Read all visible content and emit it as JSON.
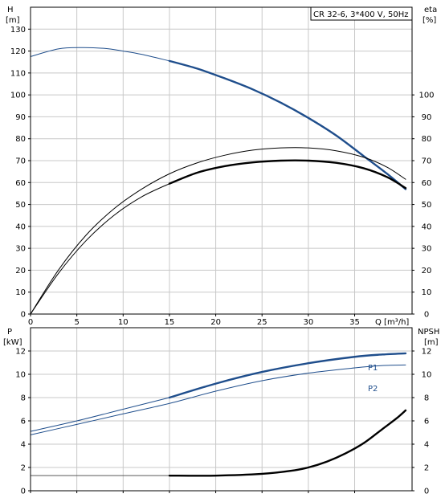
{
  "chart_data": [
    {
      "type": "line",
      "title": "CR 32-6, 3*400 V, 50Hz",
      "xlabel": "Q [m³/h]",
      "ylabel_left_name": "H",
      "ylabel_left_unit": "[m]",
      "ylabel_right_name": "eta",
      "ylabel_right_unit": "[%]",
      "xlim": [
        0,
        41.2
      ],
      "ylim_left": [
        0,
        140
      ],
      "ylim_right": [
        0,
        140
      ],
      "x_ticks": [
        0,
        5,
        10,
        15,
        20,
        25,
        30,
        35
      ],
      "y_ticks_left": [
        0,
        10,
        20,
        30,
        40,
        50,
        60,
        70,
        80,
        90,
        100,
        110,
        120,
        130
      ],
      "y_ticks_right": [
        0,
        10,
        20,
        30,
        40,
        50,
        60,
        70,
        80,
        90,
        100
      ],
      "grid": true,
      "series": [
        {
          "color": "#1f4e8c",
          "x": [
            0,
            3,
            5.5,
            8,
            10,
            12,
            15
          ],
          "y": [
            117.5,
            121,
            121.6,
            121.2,
            120,
            118.5,
            115.5
          ],
          "width": 1
        },
        {
          "color": "#1f4e8c",
          "x": [
            15,
            18,
            21,
            24,
            27,
            30,
            33,
            36,
            38.5,
            40.5
          ],
          "y": [
            115.5,
            112,
            107.5,
            102.5,
            96.5,
            89.5,
            81.5,
            72,
            64,
            57
          ],
          "width": 2.4
        },
        {
          "color": "#000000",
          "x": [
            0,
            3,
            6,
            9,
            12,
            15,
            18,
            21,
            24,
            27,
            30,
            33,
            36,
            38.5,
            40.5
          ],
          "y": [
            0,
            20,
            36,
            48,
            57,
            64,
            69,
            72.5,
            74.8,
            75.8,
            75.8,
            74.5,
            71.5,
            67,
            61.5
          ],
          "width": 1
        },
        {
          "color": "#000000",
          "x": [
            0,
            3,
            6,
            9,
            12,
            15
          ],
          "y": [
            0,
            18.5,
            33.5,
            45,
            53.5,
            59.5
          ],
          "width": 1
        },
        {
          "color": "#000000",
          "x": [
            15,
            18,
            21,
            24,
            27,
            30,
            33,
            36,
            38.5,
            40.5
          ],
          "y": [
            59.5,
            64.5,
            67.5,
            69.2,
            70,
            70,
            69,
            66.5,
            62.5,
            57.5
          ],
          "width": 2.4
        }
      ]
    },
    {
      "type": "line",
      "xlabel": "",
      "ylabel_left_name": "P",
      "ylabel_left_unit": "[kW]",
      "ylabel_right_name": "NPSH",
      "ylabel_right_unit": "[m]",
      "xlim": [
        0,
        41.2
      ],
      "ylim_left": [
        0,
        14
      ],
      "ylim_right": [
        0,
        14
      ],
      "y_ticks_left": [
        0,
        2,
        4,
        6,
        8,
        10,
        12
      ],
      "y_ticks_right": [
        0,
        2,
        4,
        6,
        8,
        10,
        12
      ],
      "grid": true,
      "series": [
        {
          "name": "P1",
          "color": "#1f4e8c",
          "x": [
            0,
            5,
            10,
            15
          ],
          "y": [
            5.1,
            6.0,
            7.0,
            8.0
          ],
          "width": 1
        },
        {
          "name": "",
          "color": "#1f4e8c",
          "x": [
            15,
            20,
            25,
            30,
            35,
            38,
            40.5
          ],
          "y": [
            8.0,
            9.2,
            10.2,
            10.95,
            11.5,
            11.7,
            11.8
          ],
          "width": 2.4
        },
        {
          "name": "P2",
          "color": "#1f4e8c",
          "x": [
            0,
            5,
            10,
            15,
            20,
            25,
            30,
            35,
            38,
            40.5
          ],
          "y": [
            4.8,
            5.7,
            6.6,
            7.5,
            8.55,
            9.45,
            10.1,
            10.55,
            10.75,
            10.8
          ],
          "width": 1
        },
        {
          "name": "",
          "color": "#5a5a5a",
          "x": [
            0,
            15
          ],
          "y": [
            1.3,
            1.3
          ],
          "width": 1
        },
        {
          "name": "",
          "color": "#000000",
          "x": [
            15,
            20,
            25,
            28,
            30,
            32,
            34,
            36,
            38,
            39.5,
            40.5
          ],
          "y": [
            1.3,
            1.3,
            1.45,
            1.7,
            2.0,
            2.5,
            3.2,
            4.1,
            5.3,
            6.2,
            6.9
          ],
          "width": 2.4
        }
      ]
    }
  ]
}
